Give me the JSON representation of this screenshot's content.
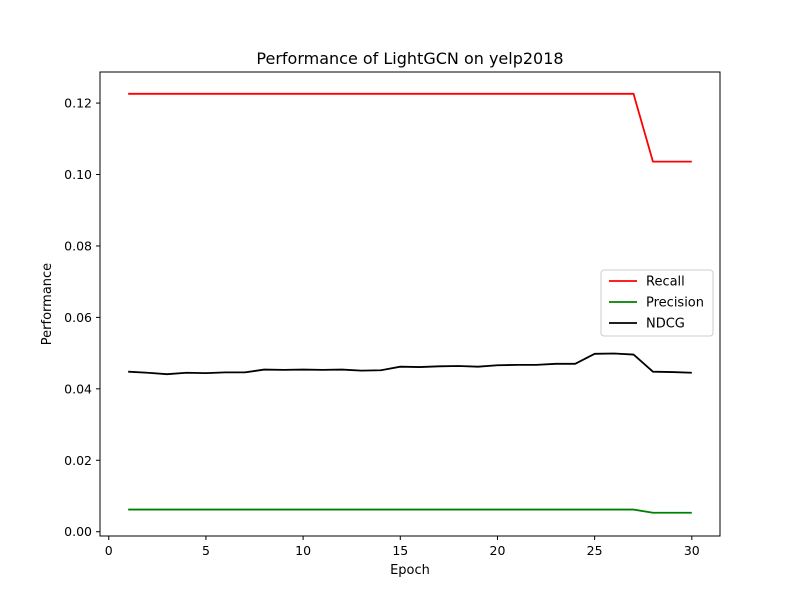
{
  "chart_data": {
    "type": "line",
    "title": "Performance of LightGCN on yelp2018",
    "xlabel": "Epoch",
    "ylabel": "Performance",
    "xlim": [
      -0.45,
      31.45
    ],
    "ylim": [
      -0.0012,
      0.1287
    ],
    "xticks": [
      0,
      5,
      10,
      15,
      20,
      25,
      30
    ],
    "xtick_labels": [
      "0",
      "5",
      "10",
      "15",
      "20",
      "25",
      "30"
    ],
    "yticks": [
      0.0,
      0.02,
      0.04,
      0.06,
      0.08,
      0.1,
      0.12
    ],
    "ytick_labels": [
      "0.00",
      "0.02",
      "0.04",
      "0.06",
      "0.08",
      "0.10",
      "0.12"
    ],
    "grid": false,
    "legend_position": "center-right",
    "x": [
      1,
      2,
      3,
      4,
      5,
      6,
      7,
      8,
      9,
      10,
      11,
      12,
      13,
      14,
      15,
      16,
      17,
      18,
      19,
      20,
      21,
      22,
      23,
      24,
      25,
      26,
      27,
      28,
      29,
      30
    ],
    "series": [
      {
        "name": "Recall",
        "color": "#ff0000",
        "values": [
          0.1226,
          0.1226,
          0.1226,
          0.1226,
          0.1226,
          0.1226,
          0.1226,
          0.1226,
          0.1226,
          0.1226,
          0.1226,
          0.1226,
          0.1226,
          0.1226,
          0.1226,
          0.1226,
          0.1226,
          0.1226,
          0.1226,
          0.1226,
          0.1226,
          0.1226,
          0.1226,
          0.1226,
          0.1226,
          0.1226,
          0.1226,
          0.1036,
          0.1036,
          0.1036
        ]
      },
      {
        "name": "Precision",
        "color": "#008000",
        "values": [
          0.0062,
          0.0062,
          0.0062,
          0.0062,
          0.0062,
          0.0062,
          0.0062,
          0.0062,
          0.0062,
          0.0062,
          0.0062,
          0.0062,
          0.0062,
          0.0062,
          0.0062,
          0.0062,
          0.0062,
          0.0062,
          0.0062,
          0.0062,
          0.0062,
          0.0062,
          0.0062,
          0.0062,
          0.0062,
          0.0062,
          0.0062,
          0.0053,
          0.0053,
          0.0053
        ]
      },
      {
        "name": "NDCG",
        "color": "#000000",
        "values": [
          0.0448,
          0.0445,
          0.0441,
          0.0445,
          0.0444,
          0.0446,
          0.0446,
          0.0454,
          0.0453,
          0.0454,
          0.0453,
          0.0454,
          0.0451,
          0.0452,
          0.0462,
          0.0461,
          0.0463,
          0.0464,
          0.0462,
          0.0466,
          0.0467,
          0.0467,
          0.047,
          0.047,
          0.0498,
          0.0499,
          0.0496,
          0.0448,
          0.0447,
          0.0445
        ]
      }
    ]
  }
}
